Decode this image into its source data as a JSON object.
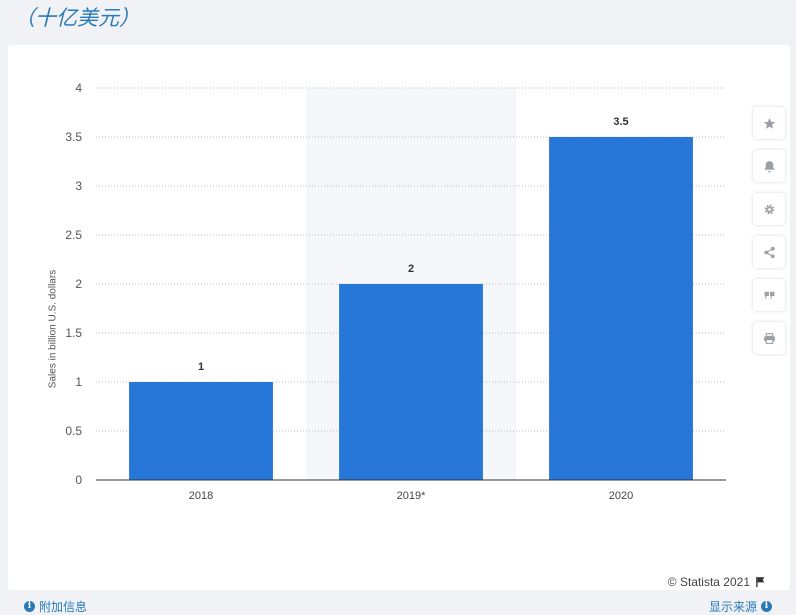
{
  "header": {
    "unit_label": "（十亿美元）"
  },
  "chart_data": {
    "type": "bar",
    "title": "",
    "xlabel": "",
    "ylabel": "Sales in billion U.S. dollars",
    "categories": [
      "2018",
      "2019*",
      "2020"
    ],
    "values": [
      1,
      2,
      3.5
    ],
    "data_labels": [
      "1",
      "2",
      "3.5"
    ],
    "ylim": [
      0,
      4
    ],
    "yticks": [
      0,
      0.5,
      1,
      1.5,
      2,
      2.5,
      3,
      3.5,
      4
    ],
    "ytick_labels": [
      "0",
      "0.5",
      "1",
      "1.5",
      "2",
      "2.5",
      "3",
      "3.5",
      "4"
    ],
    "highlighted_category": "2019*",
    "grid": true,
    "legend": "none",
    "bar_color": "#2677d8"
  },
  "tools": [
    {
      "name": "star-icon",
      "label": "favorite"
    },
    {
      "name": "bell-icon",
      "label": "notify"
    },
    {
      "name": "gear-icon",
      "label": "settings"
    },
    {
      "name": "share-icon",
      "label": "share"
    },
    {
      "name": "quote-icon",
      "label": "cite"
    },
    {
      "name": "print-icon",
      "label": "print"
    }
  ],
  "footer": {
    "credit": "© Statista 2021",
    "left_link": "附加信息",
    "right_link": "显示来源"
  }
}
